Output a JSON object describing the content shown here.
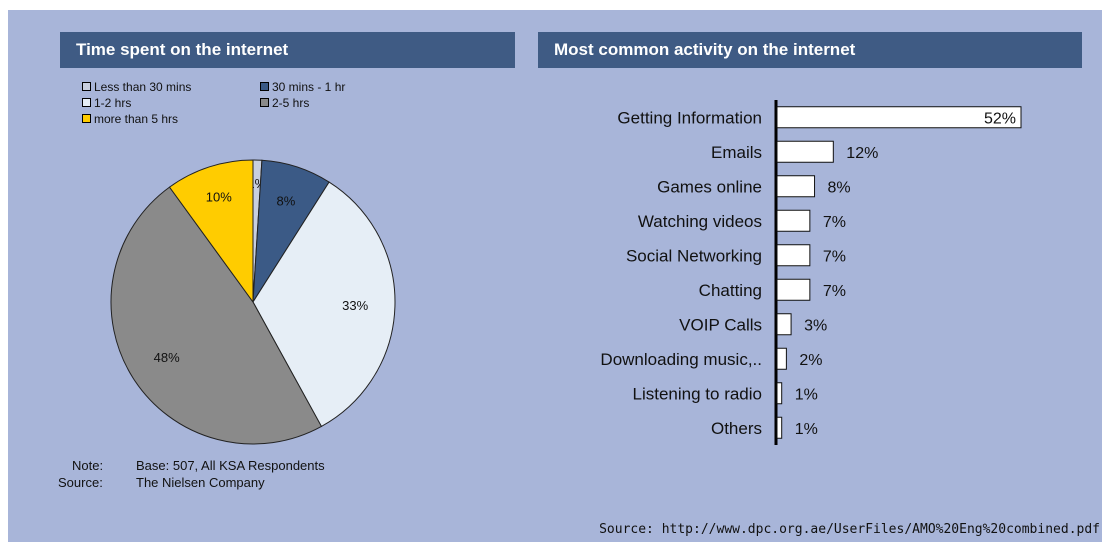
{
  "left_chart": {
    "title": "Time spent on the internet"
  },
  "right_chart": {
    "title": "Most common activity on the internet"
  },
  "notes": {
    "note_label": "Note:",
    "note_text": "Base: 507, All KSA Respondents",
    "source_label": "Source:",
    "source_text": "The Nielsen Company"
  },
  "source_url": "Source: http://www.dpc.org.ae/UserFiles/AMO%20Eng%20combined.pdf",
  "chart_data": [
    {
      "type": "pie",
      "title": "Time spent on the internet",
      "legend": [
        "Less than 30 mins",
        "30 mins - 1 hr",
        "1-2 hrs",
        "2-5 hrs",
        "more than 5 hrs"
      ],
      "legend_placement": "top",
      "slices": [
        {
          "label": "Less than 30 mins",
          "value": 1,
          "value_label": "1%",
          "color": "#c8cfdf"
        },
        {
          "label": "30 mins - 1 hr",
          "value": 8,
          "value_label": "8%",
          "color": "#3b5a86"
        },
        {
          "label": "1-2 hrs",
          "value": 33,
          "value_label": "33%",
          "color": "#e6eef6"
        },
        {
          "label": "2-5 hrs",
          "value": 48,
          "value_label": "48%",
          "color": "#8a8a8a"
        },
        {
          "label": "more than 5 hrs",
          "value": 10,
          "value_label": "10%",
          "color": "#ffcc00"
        }
      ]
    },
    {
      "type": "bar",
      "orientation": "horizontal",
      "title": "Most common activity on the internet",
      "categories": [
        "Getting Information",
        "Emails",
        "Games online",
        "Watching videos",
        "Social Networking",
        "Chatting",
        "VOIP Calls",
        "Downloading music,..",
        "Listening to radio",
        "Others"
      ],
      "values": [
        52,
        12,
        8,
        7,
        7,
        7,
        3,
        2,
        1,
        1
      ],
      "value_labels": [
        "52%",
        "12%",
        "8%",
        "7%",
        "7%",
        "7%",
        "3%",
        "2%",
        "1%",
        "1%"
      ],
      "bar_color": "#ffffff",
      "grid": false
    }
  ]
}
